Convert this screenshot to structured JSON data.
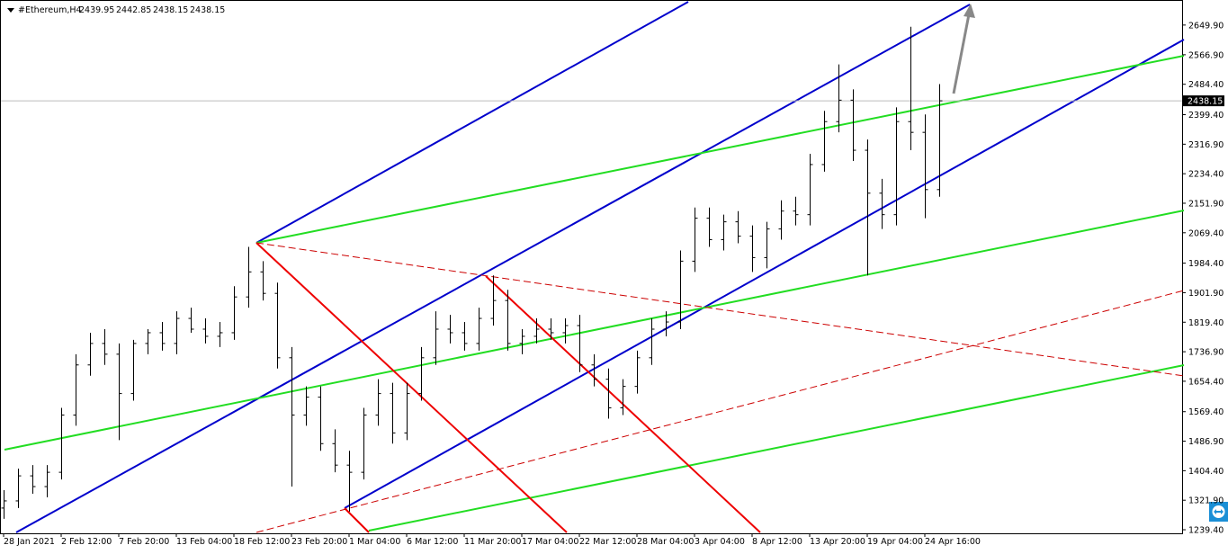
{
  "chart_data": {
    "type": "ohlc",
    "title": "#Ethereum,H4",
    "header_values": [
      2439.95,
      2442.85,
      2438.15,
      2438.15
    ],
    "current_price": 2438.15,
    "color": "#000000",
    "categories": [
      "28 Jan 2021",
      "2 Feb 12:00",
      "7 Feb 20:00",
      "13 Feb 04:00",
      "18 Feb 12:00",
      "23 Feb 20:00",
      "1 Mar 04:00",
      "6 Mar 12:00",
      "11 Mar 20:00",
      "17 Mar 04:00",
      "22 Mar 12:00",
      "28 Mar 04:00",
      "3 Apr 04:00",
      "8 Apr 12:00",
      "13 Apr 20:00",
      "19 Apr 04:00",
      "24 Apr 16:00"
    ],
    "open": [
      1300,
      1320,
      1390,
      1360,
      1400,
      1560,
      1700,
      1760,
      1730,
      1620,
      1760,
      1790,
      1760,
      1830,
      1800,
      1780,
      1790,
      1890,
      1960,
      1900,
      1720,
      1560,
      1610,
      1480,
      1420,
      1400,
      1560,
      1620,
      1510,
      1620,
      1720,
      1800,
      1790,
      1760,
      1830,
      1880,
      1760,
      1780,
      1800,
      1790,
      1810,
      1700,
      1660,
      1580,
      1640,
      1720,
      1800,
      1820,
      1990,
      2110,
      2050,
      2100,
      2060,
      2000,
      2080,
      2130,
      2120,
      2260,
      2380,
      2440,
      2300,
      2180,
      2120,
      2380,
      2350,
      2190
    ],
    "high": [
      1350,
      1410,
      1420,
      1420,
      1580,
      1730,
      1790,
      1800,
      1760,
      1770,
      1800,
      1820,
      1850,
      1860,
      1830,
      1820,
      1920,
      2030,
      1990,
      1930,
      1750,
      1640,
      1640,
      1520,
      1460,
      1580,
      1660,
      1650,
      1650,
      1750,
      1850,
      1840,
      1820,
      1860,
      1950,
      1910,
      1800,
      1830,
      1830,
      1830,
      1840,
      1730,
      1690,
      1660,
      1740,
      1830,
      1850,
      2020,
      2140,
      2140,
      2120,
      2130,
      2090,
      2100,
      2160,
      2170,
      2290,
      2410,
      2540,
      2470,
      2330,
      2220,
      2420,
      2645,
      2400,
      2485
    ],
    "low": [
      1270,
      1300,
      1340,
      1330,
      1380,
      1530,
      1670,
      1700,
      1490,
      1600,
      1730,
      1740,
      1730,
      1790,
      1760,
      1750,
      1770,
      1860,
      1880,
      1690,
      1360,
      1530,
      1460,
      1400,
      1290,
      1380,
      1530,
      1480,
      1490,
      1600,
      1700,
      1760,
      1740,
      1740,
      1810,
      1740,
      1730,
      1760,
      1770,
      1760,
      1680,
      1640,
      1550,
      1560,
      1620,
      1700,
      1780,
      1800,
      1960,
      2030,
      2020,
      2040,
      1960,
      1970,
      2050,
      2090,
      2090,
      2240,
      2350,
      2270,
      1950,
      2080,
      2090,
      2300,
      2110,
      2170
    ],
    "close": [
      1320,
      1390,
      1360,
      1400,
      1560,
      1700,
      1760,
      1730,
      1620,
      1760,
      1790,
      1760,
      1830,
      1800,
      1780,
      1790,
      1890,
      1960,
      1900,
      1720,
      1560,
      1610,
      1480,
      1420,
      1400,
      1560,
      1620,
      1510,
      1620,
      1720,
      1800,
      1790,
      1760,
      1830,
      1880,
      1760,
      1780,
      1800,
      1790,
      1810,
      1700,
      1660,
      1580,
      1640,
      1720,
      1800,
      1820,
      1990,
      2110,
      2050,
      2100,
      2060,
      2000,
      2080,
      2130,
      2120,
      2260,
      2380,
      2440,
      2300,
      2180,
      2120,
      2380,
      2350,
      2190,
      2438.15
    ],
    "ylim": [
      1229.4,
      2719.9
    ],
    "yticks": [
      {
        "value": 2649.9,
        "label": "2649.90"
      },
      {
        "value": 2566.9,
        "label": "2566.90"
      },
      {
        "value": 2484.4,
        "label": "2484.40"
      },
      {
        "value": 2399.4,
        "label": "2399.40"
      },
      {
        "value": 2316.9,
        "label": "2316.90"
      },
      {
        "value": 2234.4,
        "label": "2234.40"
      },
      {
        "value": 2151.9,
        "label": "2151.90"
      },
      {
        "value": 2069.4,
        "label": "2069.40"
      },
      {
        "value": 1984.4,
        "label": "1984.40"
      },
      {
        "value": 1901.9,
        "label": "1901.90"
      },
      {
        "value": 1819.4,
        "label": "1819.40"
      },
      {
        "value": 1736.9,
        "label": "1736.90"
      },
      {
        "value": 1654.4,
        "label": "1654.40"
      },
      {
        "value": 1569.4,
        "label": "1569.40"
      },
      {
        "value": 1486.9,
        "label": "1486.90"
      },
      {
        "value": 1404.4,
        "label": "1404.40"
      },
      {
        "value": 1321.9,
        "label": "1321.90"
      },
      {
        "value": 1239.4,
        "label": "1239.40"
      }
    ]
  }
}
